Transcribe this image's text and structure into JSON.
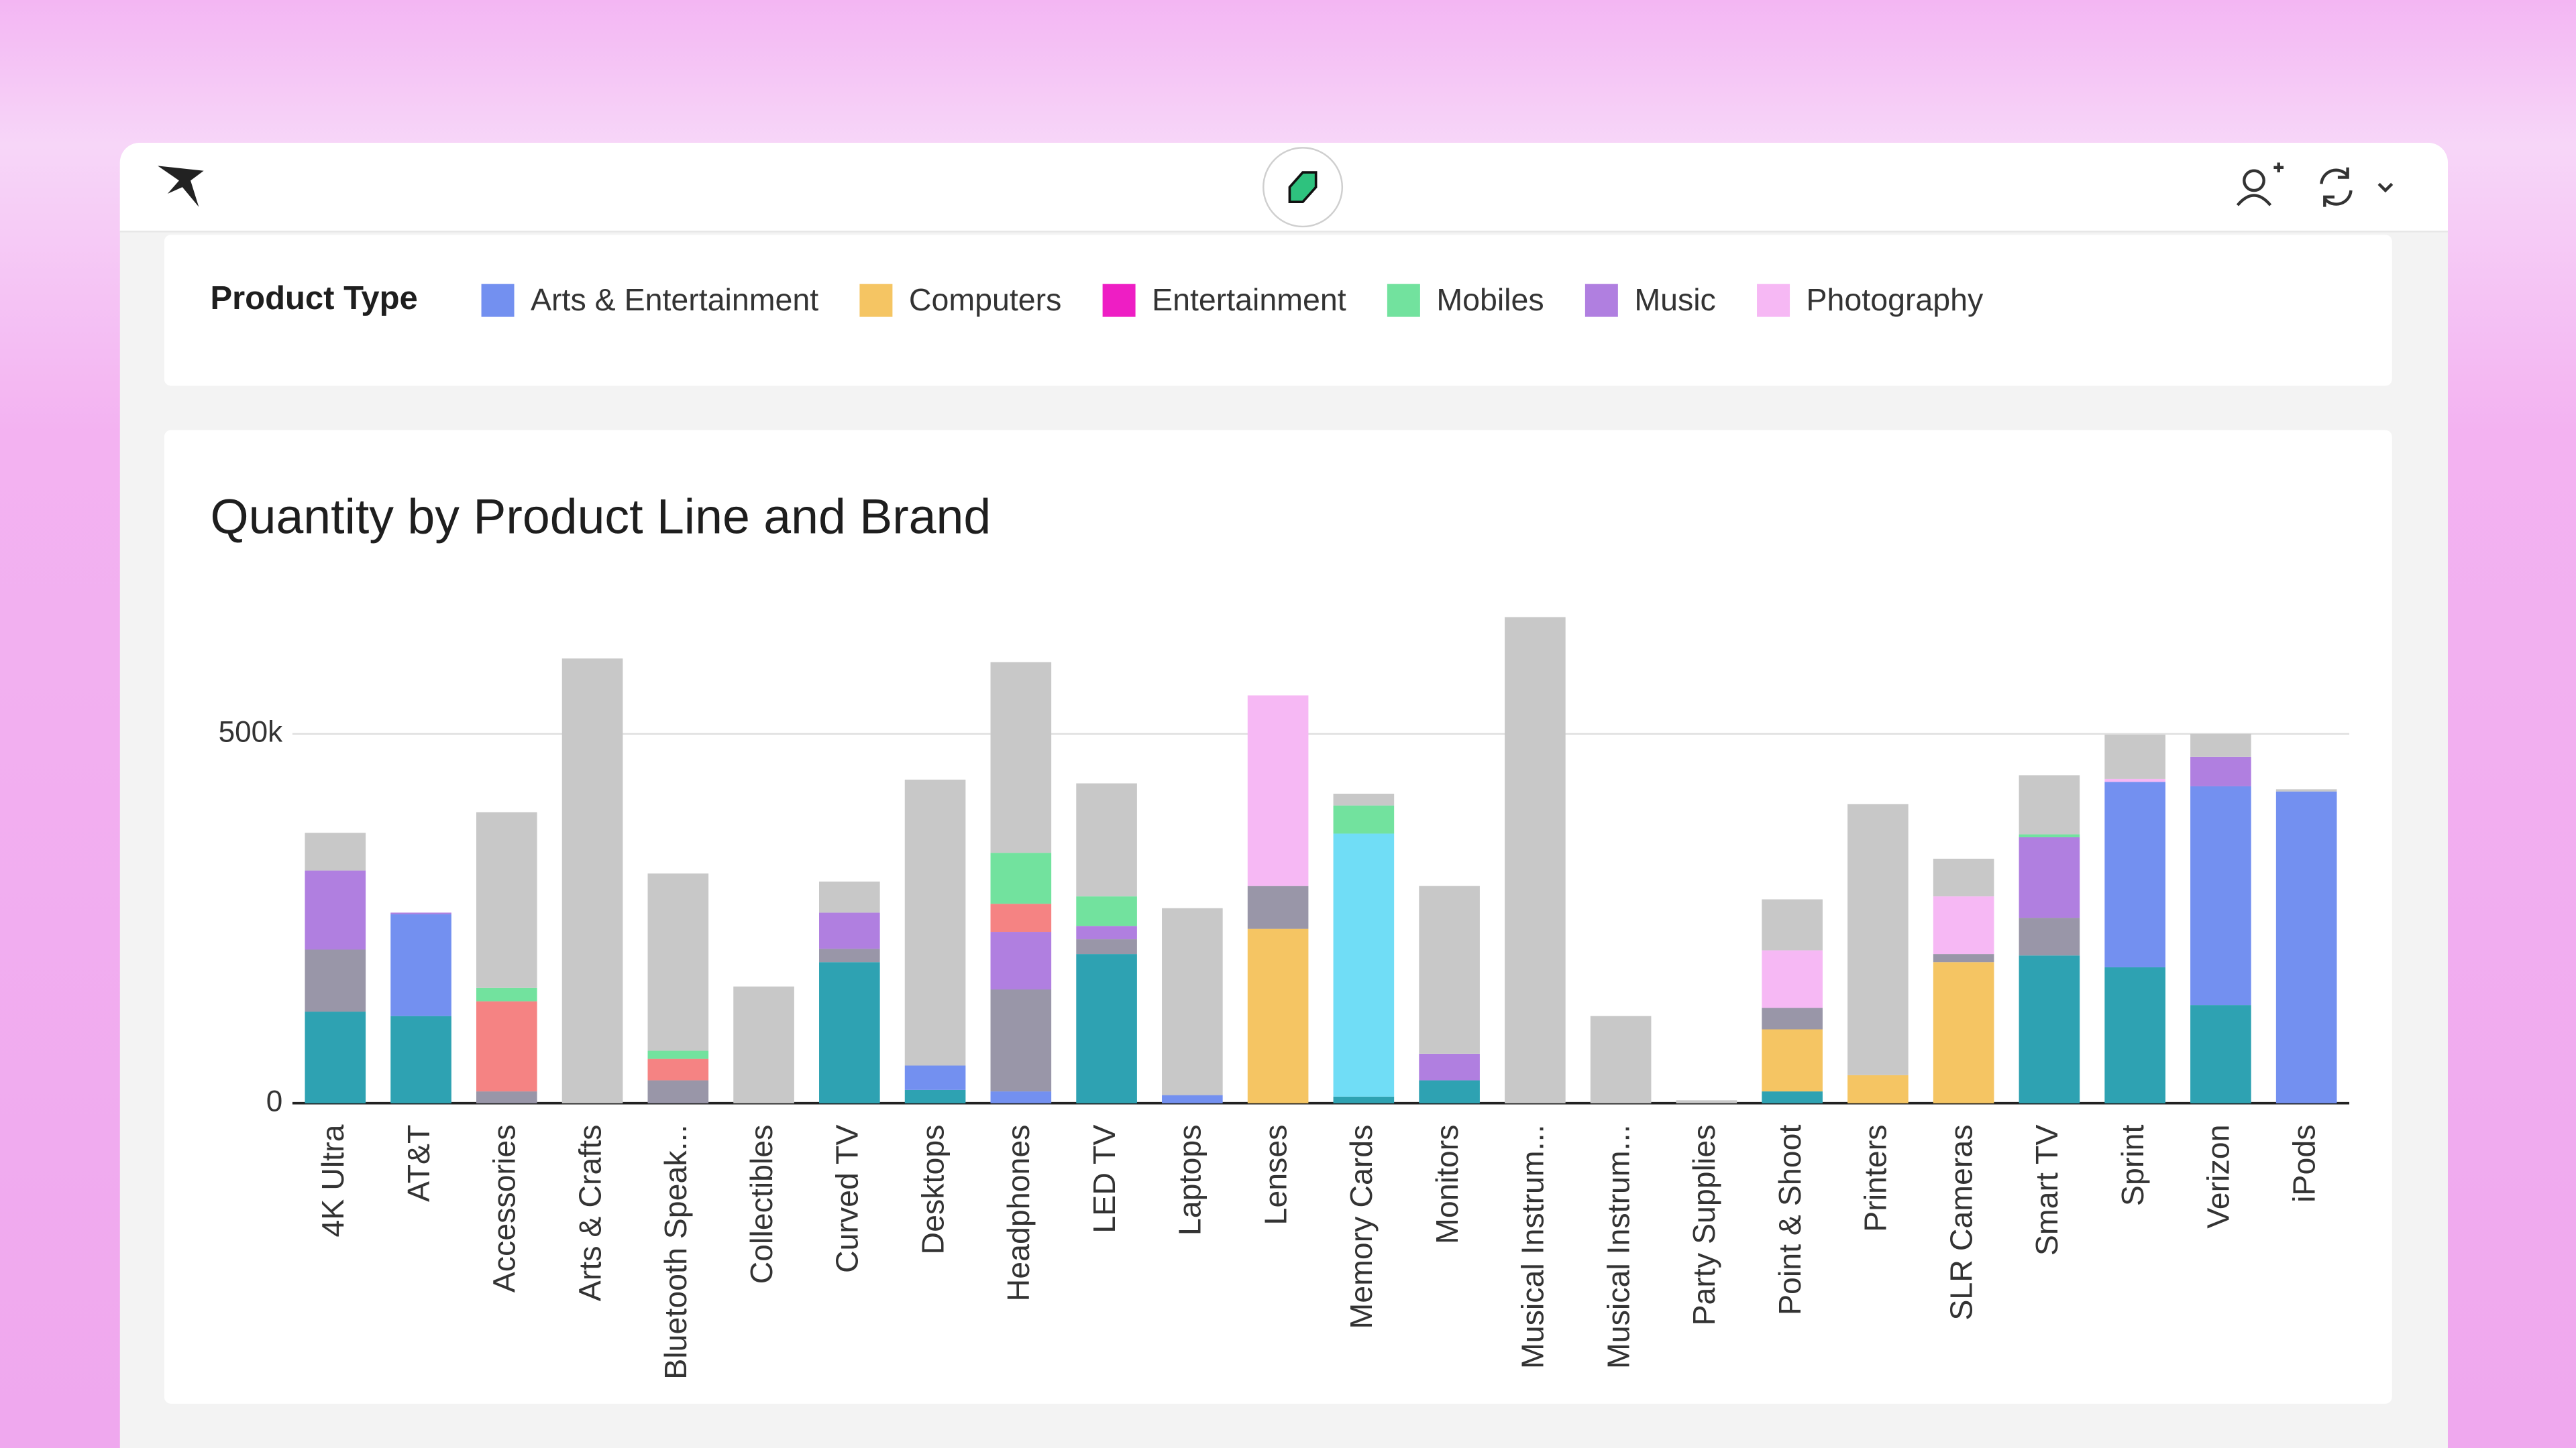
{
  "legend": {
    "title": "Product Type",
    "items": [
      {
        "name": "Arts & Entertainment",
        "color": "#7390f0"
      },
      {
        "name": "Computers",
        "color": "#f5c563"
      },
      {
        "name": "Entertainment",
        "color": "#ee1ec4"
      },
      {
        "name": "Mobiles",
        "color": "#72e29e"
      },
      {
        "name": "Music",
        "color": "#b07fe0"
      },
      {
        "name": "Photography",
        "color": "#f6b8f4"
      }
    ]
  },
  "chart_data": {
    "type": "stacked-bar",
    "title": "Quantity by Product Line and Brand",
    "categories": [
      "4K Ultra",
      "AT&T",
      "Accessories",
      "Arts & Crafts",
      "Bluetooth Speak...",
      "Collectibles",
      "Curved TV",
      "Desktops",
      "Headphones",
      "LED TV",
      "Laptops",
      "Lenses",
      "Memory Cards",
      "Monitors",
      "Musical Instrum...",
      "Musical Instrum...",
      "Party Supplies",
      "Point & Shoot",
      "Printers",
      "SLR Cameras",
      "Smart TV",
      "Sprint",
      "Verizon",
      "iPods"
    ],
    "series": [
      {
        "color": "#2ea2b2",
        "values": [
          124000,
          118000,
          0,
          0,
          0,
          0,
          191000,
          18000,
          0,
          202000,
          0,
          0,
          9000,
          31000,
          0,
          0,
          0,
          16000,
          0,
          0,
          200000,
          184000,
          133000,
          0
        ]
      },
      {
        "color": "#7390f0",
        "values": [
          0,
          138000,
          0,
          0,
          0,
          0,
          0,
          33000,
          16000,
          0,
          11000,
          0,
          0,
          0,
          0,
          0,
          0,
          0,
          0,
          0,
          0,
          251000,
          296000,
          422000
        ]
      },
      {
        "color": "#f5c563",
        "values": [
          0,
          0,
          0,
          0,
          0,
          0,
          0,
          0,
          0,
          0,
          0,
          236000,
          0,
          0,
          0,
          0,
          0,
          84000,
          38000,
          191000,
          0,
          0,
          0,
          0
        ]
      },
      {
        "color": "#70ddf6",
        "values": [
          0,
          0,
          0,
          0,
          0,
          0,
          0,
          0,
          0,
          0,
          0,
          0,
          356000,
          0,
          0,
          0,
          0,
          0,
          0,
          0,
          0,
          0,
          0,
          0
        ]
      },
      {
        "color": "#9996a8",
        "values": [
          84000,
          0,
          16000,
          0,
          31000,
          0,
          18000,
          0,
          138000,
          20000,
          0,
          58000,
          0,
          0,
          0,
          0,
          0,
          29000,
          0,
          11000,
          51000,
          0,
          0,
          0
        ]
      },
      {
        "color": "#b07fe0",
        "values": [
          107000,
          2000,
          0,
          0,
          0,
          0,
          49000,
          0,
          78000,
          18000,
          0,
          0,
          0,
          36000,
          0,
          0,
          0,
          0,
          0,
          0,
          109000,
          0,
          40000,
          0
        ]
      },
      {
        "color": "#f58383",
        "values": [
          0,
          0,
          122000,
          0,
          29000,
          0,
          0,
          0,
          38000,
          0,
          0,
          0,
          0,
          0,
          0,
          0,
          0,
          0,
          0,
          0,
          0,
          0,
          0,
          0
        ]
      },
      {
        "color": "#72e29e",
        "values": [
          0,
          0,
          18000,
          0,
          11000,
          0,
          0,
          0,
          69000,
          40000,
          0,
          0,
          38000,
          0,
          0,
          0,
          0,
          0,
          0,
          0,
          4000,
          0,
          0,
          0
        ]
      },
      {
        "color": "#f6b8f4",
        "values": [
          0,
          0,
          0,
          0,
          0,
          0,
          0,
          0,
          0,
          0,
          0,
          258000,
          0,
          0,
          0,
          0,
          0,
          78000,
          0,
          78000,
          0,
          4000,
          0,
          0
        ]
      },
      {
        "color": "#c8c8c8",
        "values": [
          51000,
          0,
          238000,
          602000,
          240000,
          158000,
          42000,
          387000,
          258000,
          153000,
          253000,
          0,
          16000,
          227000,
          658000,
          118000,
          4000,
          69000,
          367000,
          51000,
          80000,
          60000,
          31000,
          3000
        ]
      }
    ],
    "ylim": [
      0,
      700000
    ],
    "yticks": [
      0,
      {
        "value": 500000,
        "label": "500k"
      }
    ],
    "grid": true
  }
}
